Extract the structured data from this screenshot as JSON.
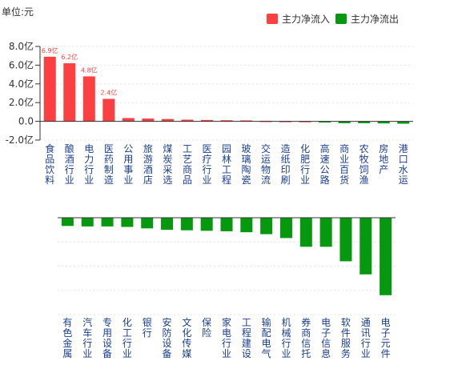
{
  "unit_label": "单位:元",
  "chart_data": [
    {
      "type": "bar",
      "legend": [
        {
          "name": "主力净流入",
          "color": "#fa4040"
        },
        {
          "name": "主力净流出",
          "color": "#06990f"
        }
      ],
      "legend_position": "top-right",
      "y_ticks": [
        "8.0亿",
        "6.0亿",
        "4.0亿",
        "2.0亿",
        "0.0",
        "-2.0亿"
      ],
      "ylim": [
        -2.0,
        8.0
      ],
      "grid": true,
      "categories": [
        "食品饮料",
        "酿酒行业",
        "电力行业",
        "医药制造",
        "公用事业",
        "旅游酒店",
        "煤炭采选",
        "工艺商品",
        "医疗行业",
        "园林工程",
        "玻璃陶瓷",
        "交运物流",
        "造纸印刷",
        "化肥行业",
        "高速公路",
        "商业百货",
        "农牧饲渔",
        "房地产",
        "港口水运"
      ],
      "values": [
        6.9,
        6.2,
        4.8,
        2.4,
        0.35,
        0.3,
        0.25,
        0.18,
        0.15,
        0.12,
        0.1,
        0.06,
        0.04,
        0.03,
        -0.08,
        -0.2,
        -0.2,
        -0.22,
        -0.25
      ],
      "data_labels": [
        "6.9亿",
        "6.2亿",
        "4.8亿",
        "2.4亿",
        "",
        "",
        "",
        "",
        "",
        "",
        "",
        "",
        "",
        "",
        "",
        "",
        "",
        "",
        ""
      ]
    },
    {
      "type": "bar",
      "grid": true,
      "ylim": [
        -2.0,
        0.0
      ],
      "categories": [
        "有色金属",
        "汽车行业",
        "专用设备",
        "化工行业",
        "银行",
        "安防设备",
        "文化传媒",
        "保险",
        "家电行业",
        "工程建设",
        "输配电气",
        "机械行业",
        "券商信托",
        "电子信息",
        "软件服务",
        "通讯行业",
        "电子元件"
      ],
      "values": [
        -0.17,
        -0.18,
        -0.18,
        -0.19,
        -0.22,
        -0.25,
        -0.26,
        -0.27,
        -0.28,
        -0.3,
        -0.34,
        -0.42,
        -0.6,
        -0.6,
        -0.9,
        -1.17,
        -1.6
      ]
    }
  ]
}
